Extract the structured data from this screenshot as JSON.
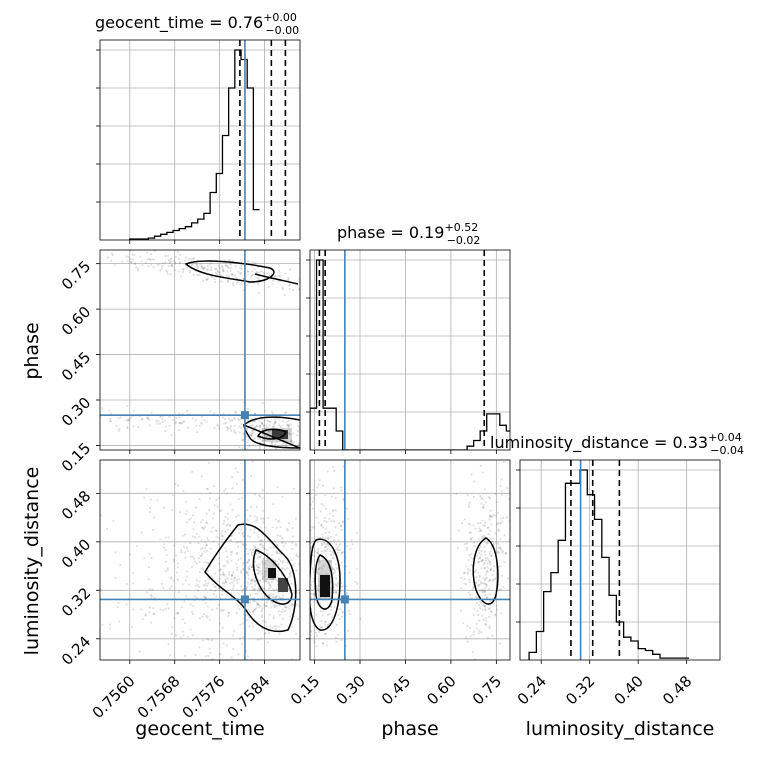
{
  "chart_data": {
    "type": "corner",
    "parameters": [
      "geocent_time",
      "phase",
      "luminosity_distance"
    ],
    "axis_labels": [
      "geocent_time",
      "phase",
      "luminosity_distance"
    ],
    "ranges": [
      [
        0.75547,
        0.75903
      ],
      [
        0.135,
        0.795
      ],
      [
        0.205,
        0.535
      ]
    ],
    "ticks": [
      [
        "0.7560",
        "0.7568",
        "0.7576",
        "0.7584"
      ],
      [
        "0.15",
        "0.30",
        "0.45",
        "0.60",
        "0.75"
      ],
      [
        "0.24",
        "0.32",
        "0.40",
        "0.48"
      ]
    ],
    "tick_values": [
      [
        0.756,
        0.7568,
        0.7576,
        0.7584
      ],
      [
        0.15,
        0.3,
        0.45,
        0.6,
        0.75
      ],
      [
        0.24,
        0.32,
        0.4,
        0.48
      ]
    ],
    "titles": [
      {
        "name": "geocent_time",
        "value": "0.76",
        "plus": "+0.00",
        "minus": "−0.00"
      },
      {
        "name": "phase",
        "value": "0.19",
        "plus": "+0.52",
        "minus": "−0.02"
      },
      {
        "name": "luminosity_distance",
        "value": "0.33",
        "plus": "+0.04",
        "minus": "−0.04"
      }
    ],
    "truths": [
      0.75805,
      0.25,
      0.305
    ],
    "quantiles": [
      [
        0.75796,
        0.75852,
        0.75877
      ],
      [
        0.166,
        0.185,
        0.71
      ],
      [
        0.289,
        0.325,
        0.369
      ]
    ],
    "histograms": [
      {
        "edges_start": 0.756,
        "bin_width": 0.00011,
        "counts": [
          0.005,
          0.005,
          0.005,
          0.01,
          0.02,
          0.03,
          0.04,
          0.05,
          0.06,
          0.07,
          0.09,
          0.11,
          0.14,
          0.25,
          0.35,
          0.55,
          0.8,
          1.0,
          0.95,
          0.8,
          0.16
        ]
      },
      {
        "edges_start": 0.135,
        "bin_width": 0.0216,
        "counts": [
          0.22,
          1.0,
          0.22,
          0.22,
          0.1,
          0,
          0,
          0,
          0,
          0,
          0,
          0,
          0,
          0,
          0,
          0,
          0,
          0,
          0,
          0,
          0,
          0,
          0,
          0,
          0.02,
          0.05,
          0.1,
          0.19,
          0.19,
          0.13,
          0.1
        ]
      },
      {
        "edges_start": 0.22,
        "bin_width": 0.012,
        "counts": [
          0.04,
          0.15,
          0.36,
          0.46,
          0.63,
          0.93,
          0.93,
          1.0,
          0.87,
          0.74,
          0.54,
          0.34,
          0.2,
          0.12,
          0.1,
          0.06,
          0.05,
          0.03,
          0.01,
          0.01,
          0.01,
          0.01
        ]
      }
    ],
    "grid": true
  }
}
